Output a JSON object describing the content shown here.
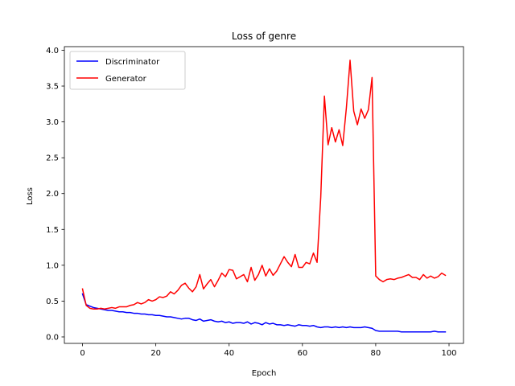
{
  "chart_data": {
    "type": "line",
    "title": "Loss of genre",
    "xlabel": "Epoch",
    "ylabel": "Loss",
    "xlim": [
      -4.95,
      103.95
    ],
    "ylim": [
      -0.09,
      4.05
    ],
    "xticks": [
      0,
      20,
      40,
      60,
      80,
      100
    ],
    "yticks": [
      0.0,
      0.5,
      1.0,
      1.5,
      2.0,
      2.5,
      3.0,
      3.5,
      4.0
    ],
    "xtick_labels": [
      "0",
      "20",
      "40",
      "60",
      "80",
      "100"
    ],
    "ytick_labels": [
      "0.0",
      "0.5",
      "1.0",
      "1.5",
      "2.0",
      "2.5",
      "3.0",
      "3.5",
      "4.0"
    ],
    "grid": false,
    "legend_position": "upper-left",
    "x": [
      0,
      1,
      2,
      3,
      4,
      5,
      6,
      7,
      8,
      9,
      10,
      11,
      12,
      13,
      14,
      15,
      16,
      17,
      18,
      19,
      20,
      21,
      22,
      23,
      24,
      25,
      26,
      27,
      28,
      29,
      30,
      31,
      32,
      33,
      34,
      35,
      36,
      37,
      38,
      39,
      40,
      41,
      42,
      43,
      44,
      45,
      46,
      47,
      48,
      49,
      50,
      51,
      52,
      53,
      54,
      55,
      56,
      57,
      58,
      59,
      60,
      61,
      62,
      63,
      64,
      65,
      66,
      67,
      68,
      69,
      70,
      71,
      72,
      73,
      74,
      75,
      76,
      77,
      78,
      79,
      80,
      81,
      82,
      83,
      84,
      85,
      86,
      87,
      88,
      89,
      90,
      91,
      92,
      93,
      94,
      95,
      96,
      97,
      98,
      99
    ],
    "series": [
      {
        "name": "Discriminator",
        "color": "#0000ff",
        "values": [
          0.6,
          0.45,
          0.43,
          0.41,
          0.4,
          0.39,
          0.38,
          0.37,
          0.37,
          0.36,
          0.35,
          0.35,
          0.34,
          0.34,
          0.33,
          0.33,
          0.32,
          0.32,
          0.31,
          0.31,
          0.3,
          0.3,
          0.29,
          0.28,
          0.28,
          0.27,
          0.26,
          0.25,
          0.26,
          0.26,
          0.24,
          0.23,
          0.25,
          0.22,
          0.23,
          0.24,
          0.22,
          0.21,
          0.22,
          0.2,
          0.21,
          0.19,
          0.2,
          0.2,
          0.19,
          0.21,
          0.18,
          0.2,
          0.19,
          0.17,
          0.2,
          0.18,
          0.19,
          0.17,
          0.17,
          0.16,
          0.17,
          0.16,
          0.15,
          0.17,
          0.16,
          0.16,
          0.15,
          0.16,
          0.14,
          0.13,
          0.14,
          0.14,
          0.13,
          0.14,
          0.13,
          0.14,
          0.13,
          0.14,
          0.13,
          0.13,
          0.13,
          0.14,
          0.13,
          0.12,
          0.09,
          0.08,
          0.08,
          0.08,
          0.08,
          0.08,
          0.08,
          0.07,
          0.07,
          0.07,
          0.07,
          0.07,
          0.07,
          0.07,
          0.07,
          0.07,
          0.08,
          0.07,
          0.07,
          0.07
        ]
      },
      {
        "name": "Generator",
        "color": "#ff0000",
        "values": [
          0.67,
          0.44,
          0.4,
          0.39,
          0.39,
          0.4,
          0.39,
          0.4,
          0.41,
          0.4,
          0.42,
          0.42,
          0.42,
          0.44,
          0.45,
          0.48,
          0.46,
          0.48,
          0.52,
          0.5,
          0.52,
          0.56,
          0.55,
          0.57,
          0.63,
          0.6,
          0.65,
          0.72,
          0.75,
          0.68,
          0.63,
          0.7,
          0.87,
          0.67,
          0.74,
          0.8,
          0.7,
          0.79,
          0.89,
          0.84,
          0.94,
          0.93,
          0.81,
          0.84,
          0.87,
          0.77,
          0.97,
          0.79,
          0.87,
          1.0,
          0.85,
          0.95,
          0.86,
          0.92,
          1.02,
          1.12,
          1.04,
          0.98,
          1.15,
          0.97,
          0.97,
          1.04,
          1.02,
          1.17,
          1.04,
          1.95,
          3.36,
          2.68,
          2.92,
          2.72,
          2.89,
          2.67,
          3.2,
          3.86,
          3.15,
          2.96,
          3.18,
          3.05,
          3.17,
          3.62,
          0.85,
          0.8,
          0.77,
          0.8,
          0.81,
          0.8,
          0.82,
          0.83,
          0.85,
          0.87,
          0.83,
          0.83,
          0.8,
          0.87,
          0.82,
          0.85,
          0.82,
          0.84,
          0.89,
          0.86
        ]
      }
    ]
  }
}
